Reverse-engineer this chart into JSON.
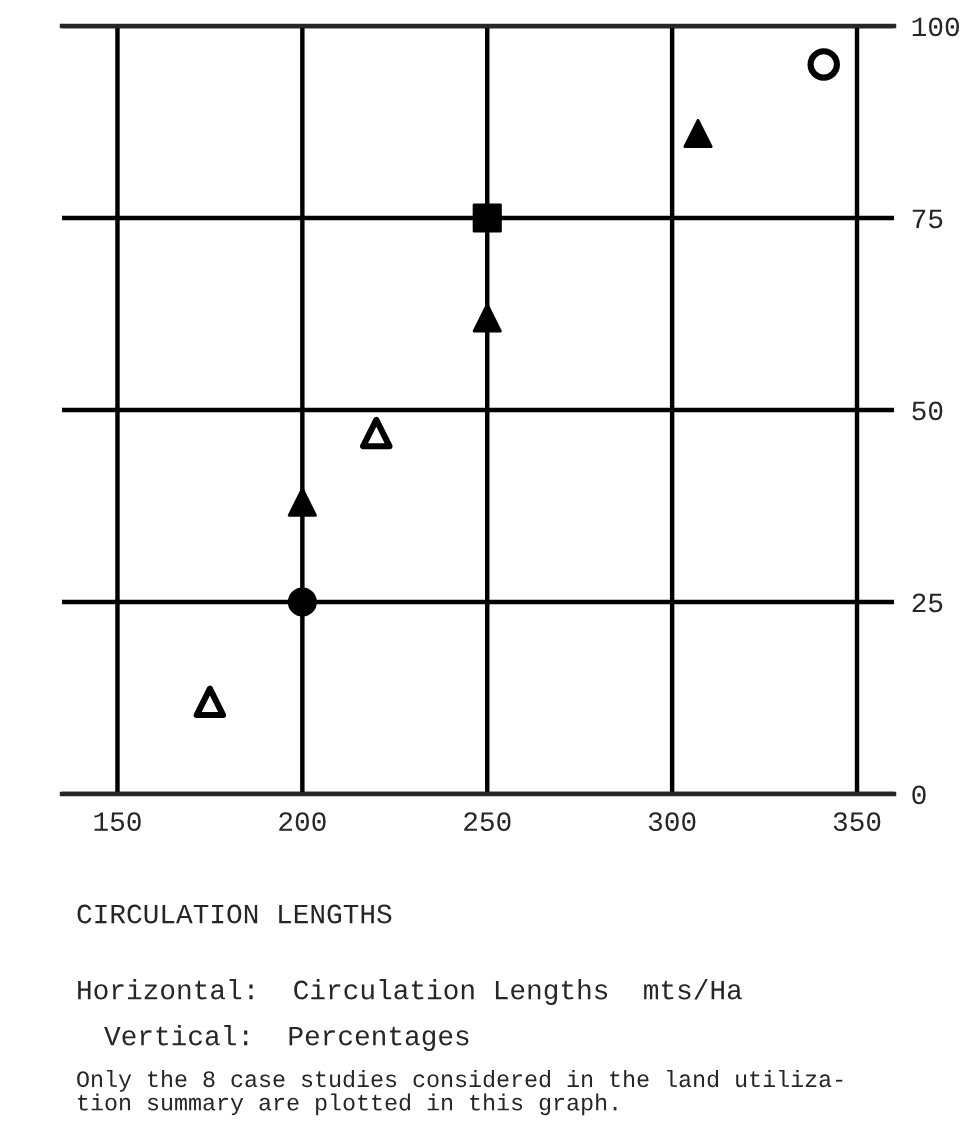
{
  "chart_data": {
    "type": "scatter",
    "title": "CIRCULATION LENGTHS",
    "annotations": [
      "Horizontal:  Circulation Lengths  mts/Ha",
      "Vertical:  Percentages",
      "Only the 8 case studies considered in the land utiliza-\ntion summary are plotted in this graph."
    ],
    "series": [
      {
        "color": "#ffffff",
        "marker": "triangle",
        "x": [
          175,
          220
        ],
        "values": [
          12,
          47
        ]
      },
      {
        "color": "#000000",
        "marker": "circle",
        "x": [
          200
        ],
        "values": [
          25
        ]
      },
      {
        "color": "#000000",
        "marker": "triangle",
        "x": [
          200,
          250,
          307
        ],
        "values": [
          38,
          62,
          86
        ]
      },
      {
        "color": "#000000",
        "marker": "square",
        "x": [
          250
        ],
        "values": [
          75
        ]
      },
      {
        "color": "#ffffff",
        "marker": "circle",
        "x": [
          341
        ],
        "values": [
          95
        ]
      }
    ],
    "xlim": [
      135,
      360
    ],
    "ylim": [
      0,
      100
    ],
    "xticks": [
      150,
      200,
      250,
      300,
      350
    ],
    "yticks": [
      0,
      25,
      50,
      75,
      100
    ],
    "grid": true
  }
}
